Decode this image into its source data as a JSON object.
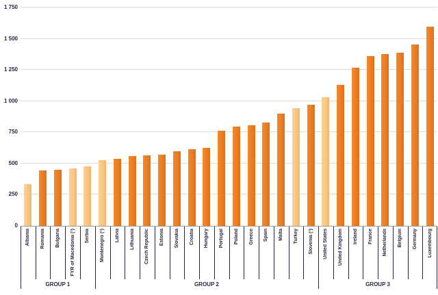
{
  "chart_data": {
    "type": "bar",
    "title": "",
    "xlabel": "",
    "ylabel": "",
    "ylim": [
      0,
      1750
    ],
    "ytick_step": 250,
    "grid": true,
    "legend": "none",
    "yticks": [
      {
        "value": 0,
        "label": "0"
      },
      {
        "value": 250,
        "label": "250"
      },
      {
        "value": 500,
        "label": "500"
      },
      {
        "value": 750,
        "label": "750"
      },
      {
        "value": 1000,
        "label": "1 000"
      },
      {
        "value": 1250,
        "label": "1 250"
      },
      {
        "value": 1500,
        "label": "1 500"
      },
      {
        "value": 1750,
        "label": "1 750"
      }
    ],
    "colors": {
      "dark_bar": "#ed7d23",
      "light_bar": "#f8c57e",
      "gridline": "#dcdcdc",
      "axis_text": "#26253e"
    },
    "bars": [
      {
        "label": "Albania",
        "value": 335,
        "shade": "light"
      },
      {
        "label": "Romania",
        "value": 445,
        "shade": "dark"
      },
      {
        "label": "Bulgaria",
        "value": 450,
        "shade": "dark"
      },
      {
        "label": "FYR of Macedonia (¹)",
        "value": 460,
        "shade": "light"
      },
      {
        "label": "Serbia",
        "value": 475,
        "shade": "light"
      },
      {
        "label": "Montenegro (¹)",
        "value": 525,
        "shade": "light"
      },
      {
        "label": "Latvia",
        "value": 535,
        "shade": "dark"
      },
      {
        "label": "Lithuania",
        "value": 560,
        "shade": "dark"
      },
      {
        "label": "Czech Republic",
        "value": 565,
        "shade": "dark"
      },
      {
        "label": "Estonia",
        "value": 570,
        "shade": "dark"
      },
      {
        "label": "Slovakia",
        "value": 600,
        "shade": "dark"
      },
      {
        "label": "Croatia",
        "value": 615,
        "shade": "dark"
      },
      {
        "label": "Hungary",
        "value": 625,
        "shade": "dark"
      },
      {
        "label": "Portugal",
        "value": 760,
        "shade": "dark"
      },
      {
        "label": "Poland",
        "value": 795,
        "shade": "dark"
      },
      {
        "label": "Greece",
        "value": 805,
        "shade": "dark"
      },
      {
        "label": "Spain",
        "value": 830,
        "shade": "dark"
      },
      {
        "label": "Malta",
        "value": 900,
        "shade": "dark"
      },
      {
        "label": "Turkey",
        "value": 945,
        "shade": "light"
      },
      {
        "label": "Slovenia (¹)",
        "value": 970,
        "shade": "dark"
      },
      {
        "label": "United States",
        "value": 1030,
        "shade": "light"
      },
      {
        "label": "United Kingdom",
        "value": 1130,
        "shade": "dark"
      },
      {
        "label": "Ireland",
        "value": 1265,
        "shade": "dark"
      },
      {
        "label": "France",
        "value": 1360,
        "shade": "dark"
      },
      {
        "label": "Netherlands",
        "value": 1375,
        "shade": "dark"
      },
      {
        "label": "Belgium",
        "value": 1390,
        "shade": "dark"
      },
      {
        "label": "Germany",
        "value": 1455,
        "shade": "dark"
      },
      {
        "label": "Luxembourg",
        "value": 1595,
        "shade": "dark"
      }
    ],
    "groups": [
      {
        "label": "GROUP 1",
        "start": 0,
        "count": 5
      },
      {
        "label": "GROUP 2",
        "start": 5,
        "count": 15
      },
      {
        "label": "GROUP 3",
        "start": 20,
        "count": 8
      }
    ]
  }
}
